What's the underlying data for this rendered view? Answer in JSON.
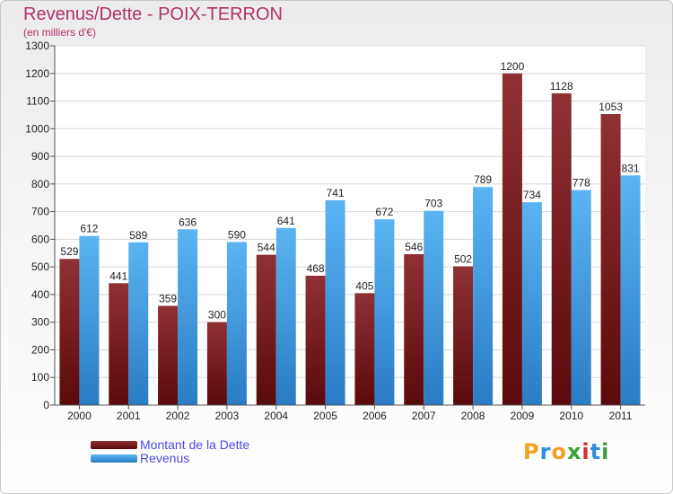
{
  "title": "Revenus/Dette - POIX-TERRON",
  "subtitle": "(en milliers d'€)",
  "logo": {
    "letters": [
      "P",
      "r",
      "o",
      "x",
      "i",
      "t",
      "i"
    ],
    "colors": [
      "#f2a01f",
      "#2e8fd6",
      "#f2a01f",
      "#3aa03a",
      "#d62e2e",
      "#2e8fd6",
      "#3aa03a"
    ]
  },
  "chart_data": {
    "type": "bar",
    "categories": [
      "2000",
      "2001",
      "2002",
      "2003",
      "2004",
      "2005",
      "2006",
      "2007",
      "2008",
      "2009",
      "2010",
      "2011"
    ],
    "series": [
      {
        "name": "Montant de la Dette",
        "color": "#7a1e23",
        "values": [
          529,
          441,
          359,
          300,
          544,
          468,
          405,
          546,
          502,
          1200,
          1128,
          1053
        ]
      },
      {
        "name": "Revenus",
        "color": "#4aa3e6",
        "values": [
          612,
          589,
          636,
          590,
          641,
          741,
          672,
          703,
          789,
          734,
          778,
          831
        ]
      }
    ],
    "ylim": [
      0,
      1300
    ],
    "yticks": [
      0,
      100,
      200,
      300,
      400,
      500,
      600,
      700,
      800,
      900,
      1000,
      1100,
      1200,
      1300
    ],
    "grid": true,
    "legend_position": "bottom-left"
  }
}
